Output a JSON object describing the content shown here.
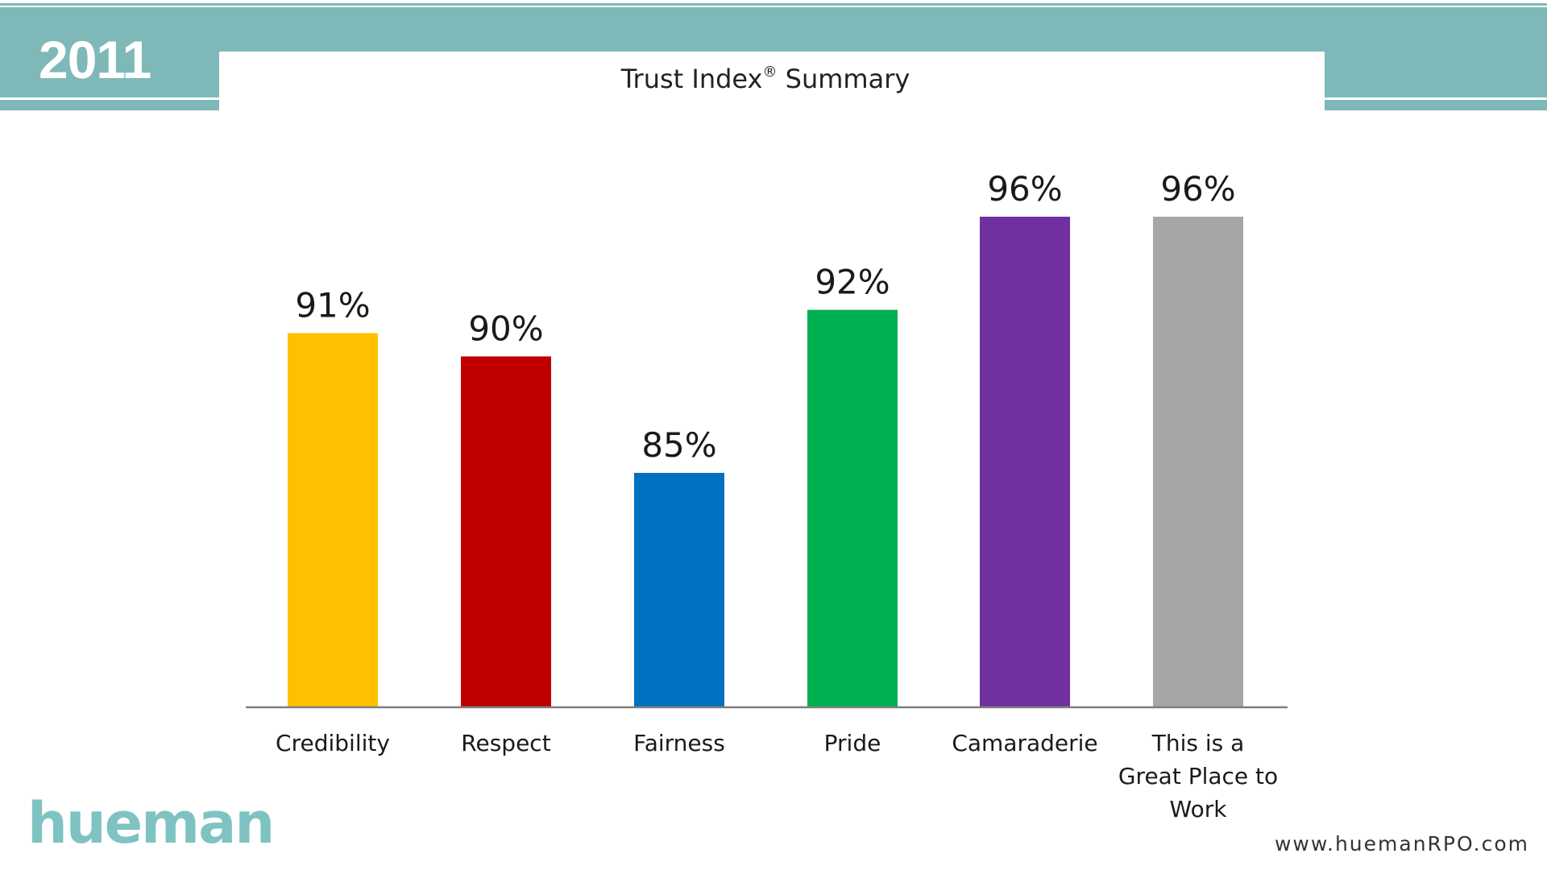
{
  "header": {
    "year": "2011"
  },
  "chart_data": {
    "type": "bar",
    "title": "Trust Index",
    "title_superscript": "®",
    "title_suffix": " Summary",
    "categories": [
      "Credibility",
      "Respect",
      "Fairness",
      "Pride",
      "Camaraderie",
      "This is a Great Place to Work"
    ],
    "category_lines": [
      [
        "Credibility"
      ],
      [
        "Respect"
      ],
      [
        "Fairness"
      ],
      [
        "Pride"
      ],
      [
        "Camaraderie"
      ],
      [
        "This is a",
        "Great Place to",
        "Work"
      ]
    ],
    "values": [
      91,
      90,
      85,
      92,
      96,
      96
    ],
    "data_labels": [
      "91%",
      "90%",
      "85%",
      "92%",
      "96%",
      "96%"
    ],
    "colors": [
      "#ffc000",
      "#c00000",
      "#0070c0",
      "#00b050",
      "#7030a0",
      "#a6a6a6"
    ],
    "ylim": [
      0,
      100
    ],
    "xlabel": "",
    "ylabel": "",
    "grid": false,
    "legend": false
  },
  "footer": {
    "logo_text": "hueman",
    "website": "www.huemanRPO.com"
  },
  "colors": {
    "accent": "#7fb8b8",
    "logo": "#7fc2c2",
    "axis": "#7f7f7f"
  }
}
